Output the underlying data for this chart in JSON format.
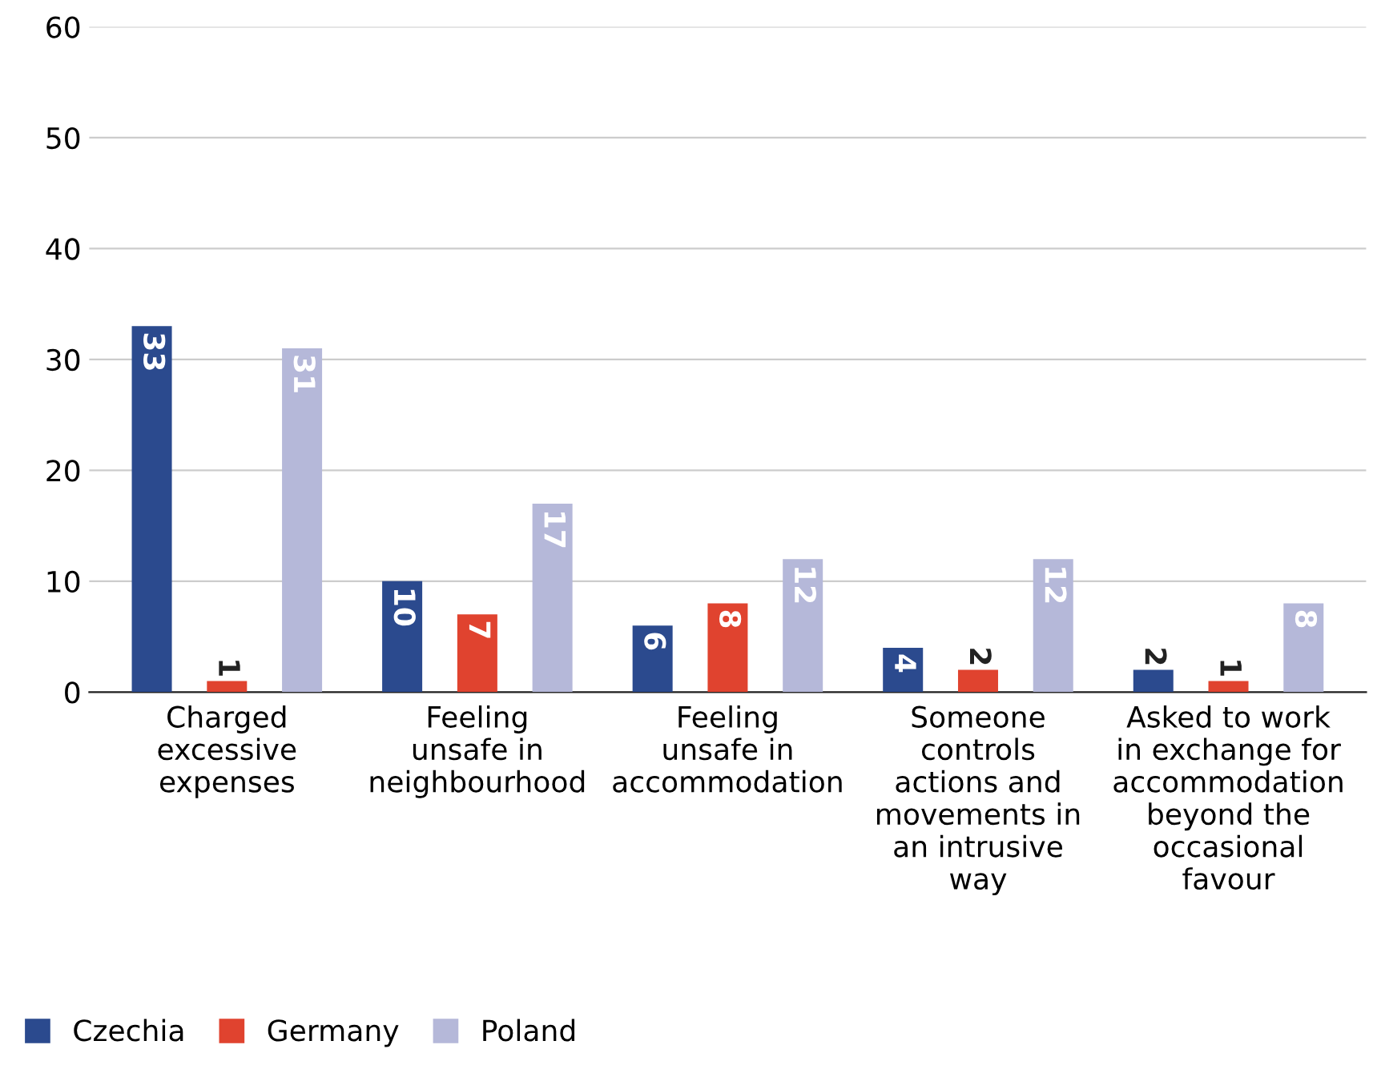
{
  "chart_data": {
    "type": "bar",
    "categories": [
      "Charged\nexcessive\nexpenses",
      "Feeling\nunsafe in\nneighbourhood",
      "Feeling\nunsafe in\naccommodation",
      "Someone\ncontrols\nactions and\nmovements in\nan intrusive\nway",
      "Asked to work\nin exchange for\naccommodation\nbeyond the\noccasional\nfavour"
    ],
    "series": [
      {
        "name": "Czechia",
        "color": "#2b4a8e",
        "values": [
          33,
          10,
          6,
          4,
          2
        ]
      },
      {
        "name": "Germany",
        "color": "#e0432f",
        "values": [
          1,
          7,
          8,
          2,
          1
        ]
      },
      {
        "name": "Poland",
        "color": "#b5b8d9",
        "values": [
          31,
          17,
          12,
          12,
          8
        ]
      }
    ],
    "ylim": [
      0,
      60
    ],
    "yticks": [
      0,
      10,
      20,
      30,
      40,
      50,
      60
    ],
    "grid": "y",
    "legend": "bottom left",
    "data_labels": true
  }
}
